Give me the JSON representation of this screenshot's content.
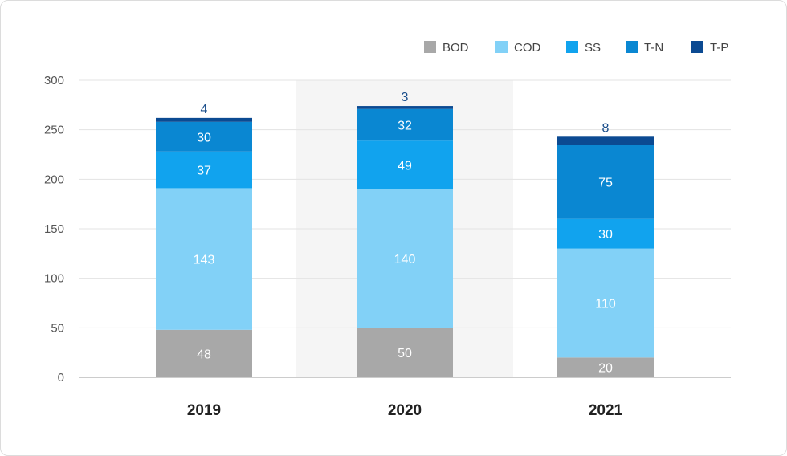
{
  "chart_data": {
    "type": "bar",
    "stacked": true,
    "categories": [
      "2019",
      "2020",
      "2021"
    ],
    "series": [
      {
        "name": "BOD",
        "color": "#a8a8a8",
        "values": [
          48,
          50,
          20
        ]
      },
      {
        "name": "COD",
        "color": "#82d1f7",
        "values": [
          143,
          140,
          110
        ]
      },
      {
        "name": "SS",
        "color": "#11a3ee",
        "values": [
          37,
          49,
          30
        ]
      },
      {
        "name": "T-N",
        "color": "#0a87d2",
        "values": [
          30,
          32,
          75
        ]
      },
      {
        "name": "T-P",
        "color": "#0b4a92",
        "values": [
          4,
          3,
          8
        ]
      }
    ],
    "ylim": [
      0,
      300
    ],
    "yticks": [
      0,
      50,
      100,
      150,
      200,
      250,
      300
    ],
    "highlighted_category": "2020",
    "grid": true,
    "legend_position": "top-right"
  }
}
